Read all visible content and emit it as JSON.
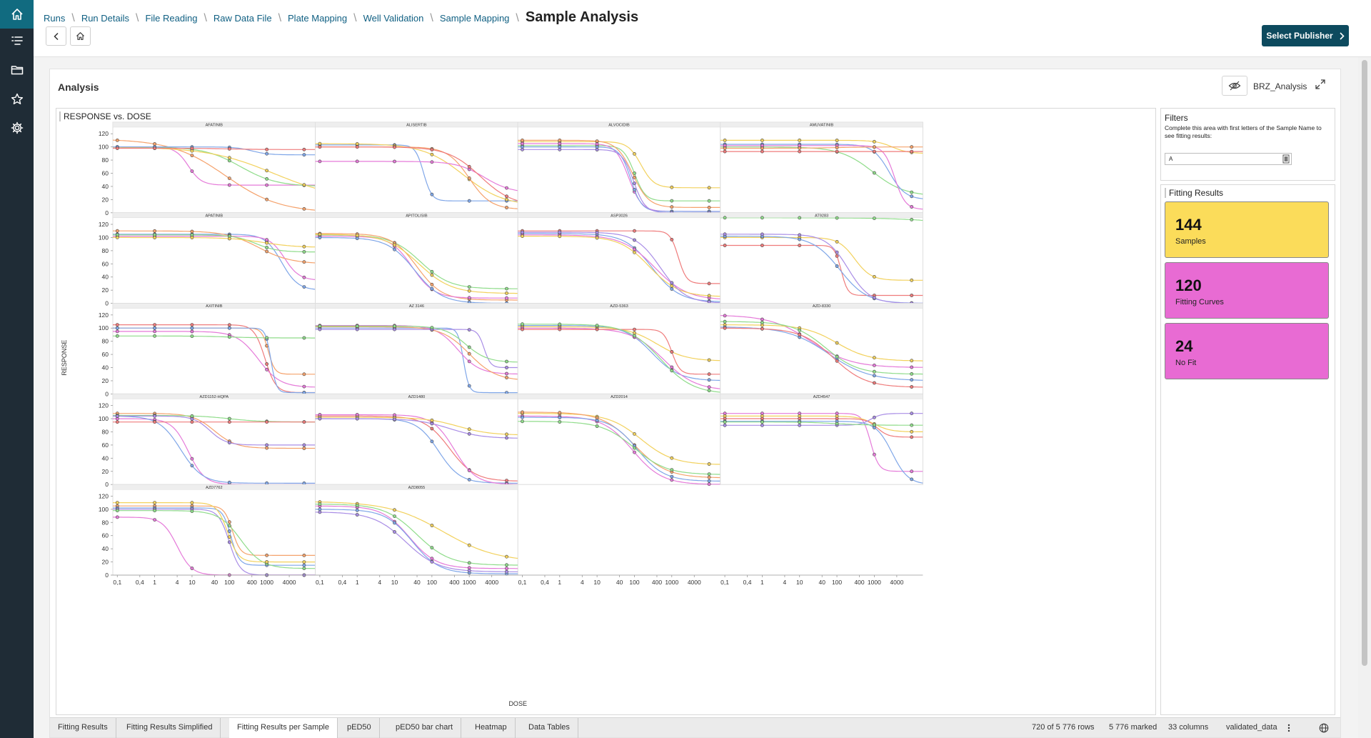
{
  "nav": {
    "items": [
      {
        "icon": "home-icon",
        "active": true
      },
      {
        "icon": "list-icon",
        "active": false
      },
      {
        "icon": "folder-icon",
        "active": false
      },
      {
        "icon": "star-icon",
        "active": false
      },
      {
        "icon": "gear-icon",
        "active": false
      }
    ]
  },
  "breadcrumb": {
    "items": [
      "Runs",
      "Run Details",
      "File Reading",
      "Raw Data File",
      "Plate Mapping",
      "Well Validation",
      "Sample Mapping"
    ],
    "current": "Sample Analysis"
  },
  "toolbar": {
    "back_icon": "chevron-left-icon",
    "home_icon": "home-icon",
    "publisher_label": "Select Publisher"
  },
  "analysis": {
    "title": "Analysis",
    "view_name": "BRZ_Analysis"
  },
  "chart": {
    "title": "RESPONSE vs. DOSE"
  },
  "filters": {
    "title": "Filters",
    "help": "Complete this area with first letters of the Sample Name to see fitting results:",
    "value": "A"
  },
  "fitting_results": {
    "title": "Fitting Results",
    "cards": [
      {
        "value": "144",
        "label": "Samples",
        "color": "#fbdc5a"
      },
      {
        "value": "120",
        "label": "Fitting Curves",
        "color": "#e86bd3"
      },
      {
        "value": "24",
        "label": "No Fit",
        "color": "#e86bd3"
      }
    ]
  },
  "tabs": [
    {
      "label": "Fitting Results",
      "active": false
    },
    {
      "label": "Fitting Results Simplified",
      "active": false
    },
    {
      "label": "Fitting Results per Sample",
      "active": true
    },
    {
      "label": "pED50",
      "active": false
    },
    {
      "label": "pED50 bar chart",
      "active": false
    },
    {
      "label": "Heatmap",
      "active": false
    },
    {
      "label": "Data Tables",
      "active": false
    }
  ],
  "status": {
    "rows": "720 of 5 776 rows",
    "marked": "5 776 marked",
    "columns": "33 columns",
    "table": "validated_data"
  },
  "colors": {
    "accent": "#0d4a5e",
    "nav_bg": "#1f2c36",
    "nav_active": "#116b80"
  },
  "chart_data": {
    "type": "line",
    "title": "RESPONSE vs. DOSE",
    "xlabel": "DOSE",
    "ylabel": "RESPONSE",
    "xscale": "log",
    "xticks": [
      "0,1",
      "0,4",
      "1",
      "4",
      "10",
      "40",
      "100",
      "400",
      "1000",
      "4000"
    ],
    "yticks": [
      0,
      20,
      40,
      60,
      80,
      100,
      120
    ],
    "ylim": [
      0,
      130
    ],
    "series_colors": [
      "#f5a26c",
      "#7fa6e8",
      "#f2d15c",
      "#8fdc8a",
      "#e57ad9",
      "#a98de6",
      "#ef7b7b",
      "#6fc4d7"
    ],
    "panels": [
      {
        "name": "AFATINIB",
        "curves": [
          {
            "top": 100,
            "bottom": 42,
            "ec50": 8,
            "hill": 2.5,
            "color": 4
          },
          {
            "top": 112,
            "bottom": 0,
            "ec50": 80,
            "hill": 0.6,
            "color": 0
          },
          {
            "top": 100,
            "bottom": 40,
            "ec50": 200,
            "hill": 0.9,
            "color": 3
          },
          {
            "top": 100,
            "bottom": 20,
            "ec50": 1500,
            "hill": 0.5,
            "color": 2
          },
          {
            "top": 100,
            "bottom": 88,
            "ec50": 400,
            "hill": 2,
            "color": 1
          },
          {
            "top": 98,
            "bottom": 96,
            "ec50": 100,
            "hill": 1,
            "color": 6
          }
        ]
      },
      {
        "name": "ALISERTIB",
        "curves": [
          {
            "top": 103,
            "bottom": 18,
            "ec50": 60,
            "hill": 4,
            "color": 1
          },
          {
            "top": 105,
            "bottom": 10,
            "ec50": 700,
            "hill": 0.8,
            "color": 2
          },
          {
            "top": 100,
            "bottom": 5,
            "ec50": 1000,
            "hill": 1.5,
            "color": 0
          },
          {
            "top": 78,
            "bottom": 30,
            "ec50": 2500,
            "hill": 1.2,
            "color": 4
          },
          {
            "top": 100,
            "bottom": 10,
            "ec50": 2000,
            "hill": 1,
            "color": 6
          }
        ]
      },
      {
        "name": "ALVOCIDIB",
        "curves": [
          {
            "top": 108,
            "bottom": 38,
            "ec50": 150,
            "hill": 2.5,
            "color": 2
          },
          {
            "top": 102,
            "bottom": 18,
            "ec50": 100,
            "hill": 3,
            "color": 3
          },
          {
            "top": 110,
            "bottom": 8,
            "ec50": 90,
            "hill": 2,
            "color": 0
          },
          {
            "top": 105,
            "bottom": 2,
            "ec50": 70,
            "hill": 2.5,
            "color": 4
          },
          {
            "top": 100,
            "bottom": 2,
            "ec50": 80,
            "hill": 3,
            "color": 1
          },
          {
            "top": 96,
            "bottom": 0,
            "ec50": 95,
            "hill": 2.8,
            "color": 5
          }
        ]
      },
      {
        "name": "AMUVATINIB",
        "curves": [
          {
            "top": 100,
            "bottom": 25,
            "ec50": 900,
            "hill": 1,
            "color": 3
          },
          {
            "top": 104,
            "bottom": 20,
            "ec50": 2500,
            "hill": 2,
            "color": 1
          },
          {
            "top": 102,
            "bottom": 5,
            "ec50": 3500,
            "hill": 3,
            "color": 4
          },
          {
            "top": 110,
            "bottom": 90,
            "ec50": 3000,
            "hill": 2,
            "color": 2
          },
          {
            "top": 98,
            "bottom": 100,
            "ec50": 100,
            "hill": 1,
            "color": 0
          },
          {
            "top": 93,
            "bottom": 93,
            "ec50": 100,
            "hill": 1,
            "color": 6
          }
        ]
      },
      {
        "name": "APATINIB",
        "curves": [
          {
            "top": 105,
            "bottom": 20,
            "ec50": 2500,
            "hill": 2,
            "color": 1
          },
          {
            "top": 102,
            "bottom": 35,
            "ec50": 3000,
            "hill": 2.2,
            "color": 4
          },
          {
            "top": 110,
            "bottom": 60,
            "ec50": 600,
            "hill": 1,
            "color": 0
          },
          {
            "top": 104,
            "bottom": 78,
            "ec50": 500,
            "hill": 1.5,
            "color": 3
          },
          {
            "top": 100,
            "bottom": 85,
            "ec50": 800,
            "hill": 1,
            "color": 2
          }
        ]
      },
      {
        "name": "APITOLISIB",
        "curves": [
          {
            "top": 104,
            "bottom": 22,
            "ec50": 50,
            "hill": 1.1,
            "color": 3
          },
          {
            "top": 106,
            "bottom": 5,
            "ec50": 40,
            "hill": 1.3,
            "color": 0
          },
          {
            "top": 102,
            "bottom": 8,
            "ec50": 30,
            "hill": 1.5,
            "color": 4
          },
          {
            "top": 100,
            "bottom": 0,
            "ec50": 35,
            "hill": 1.2,
            "color": 1
          },
          {
            "top": 105,
            "bottom": 15,
            "ec50": 45,
            "hill": 1,
            "color": 2
          }
        ]
      },
      {
        "name": "ASP3026",
        "curves": [
          {
            "top": 110,
            "bottom": 30,
            "ec50": 1500,
            "hill": 4,
            "color": 6
          },
          {
            "top": 106,
            "bottom": 2,
            "ec50": 300,
            "hill": 1.2,
            "color": 1
          },
          {
            "top": 104,
            "bottom": 5,
            "ec50": 350,
            "hill": 1,
            "color": 4
          },
          {
            "top": 102,
            "bottom": 10,
            "ec50": 250,
            "hill": 1.1,
            "color": 2
          },
          {
            "top": 108,
            "bottom": 0,
            "ec50": 500,
            "hill": 1.3,
            "color": 5
          }
        ]
      },
      {
        "name": "AT9283",
        "curves": [
          {
            "top": 130,
            "bottom": 0,
            "ec50": 20000000.0,
            "hill": 0.5,
            "color": 3
          },
          {
            "top": 88,
            "bottom": 12,
            "ec50": 130,
            "hill": 5,
            "color": 6
          },
          {
            "top": 100,
            "bottom": 35,
            "ec50": 300,
            "hill": 2,
            "color": 2
          },
          {
            "top": 102,
            "bottom": 0,
            "ec50": 120,
            "hill": 1.2,
            "color": 1
          },
          {
            "top": 105,
            "bottom": 0,
            "ec50": 200,
            "hill": 1.5,
            "color": 5
          }
        ]
      },
      {
        "name": "AXITINIB",
        "curves": [
          {
            "top": 105,
            "bottom": 2,
            "ec50": 900,
            "hill": 3,
            "color": 6
          },
          {
            "top": 100,
            "bottom": 30,
            "ec50": 1100,
            "hill": 5,
            "color": 0
          },
          {
            "top": 95,
            "bottom": 10,
            "ec50": 600,
            "hill": 1.5,
            "color": 4
          },
          {
            "top": 100,
            "bottom": 2,
            "ec50": 1300,
            "hill": 6,
            "color": 1
          },
          {
            "top": 88,
            "bottom": 85,
            "ec50": 100,
            "hill": 1,
            "color": 3
          }
        ]
      },
      {
        "name": "AZ 3146",
        "curves": [
          {
            "top": 100,
            "bottom": 2,
            "ec50": 700,
            "hill": 6,
            "color": 1
          },
          {
            "top": 104,
            "bottom": 30,
            "ec50": 500,
            "hill": 1.5,
            "color": 4
          },
          {
            "top": 102,
            "bottom": 20,
            "ec50": 1000,
            "hill": 1.2,
            "color": 0
          },
          {
            "top": 98,
            "bottom": 40,
            "ec50": 2500,
            "hill": 5,
            "color": 5
          },
          {
            "top": 103,
            "bottom": 48,
            "ec50": 800,
            "hill": 1.5,
            "color": 3
          }
        ]
      },
      {
        "name": "AZD-5363",
        "curves": [
          {
            "top": 104,
            "bottom": 20,
            "ec50": 300,
            "hill": 1.2,
            "color": 1
          },
          {
            "top": 102,
            "bottom": 50,
            "ec50": 400,
            "hill": 1.1,
            "color": 2
          },
          {
            "top": 100,
            "bottom": 5,
            "ec50": 600,
            "hill": 1,
            "color": 4
          },
          {
            "top": 98,
            "bottom": 30,
            "ec50": 1000,
            "hill": 4,
            "color": 6
          },
          {
            "top": 106,
            "bottom": 0,
            "ec50": 500,
            "hill": 1,
            "color": 3
          }
        ]
      },
      {
        "name": "AZD-8330",
        "curves": [
          {
            "top": 120,
            "bottom": 40,
            "ec50": 20,
            "hill": 0.8,
            "color": 4
          },
          {
            "top": 105,
            "bottom": 50,
            "ec50": 100,
            "hill": 1,
            "color": 2
          },
          {
            "top": 102,
            "bottom": 20,
            "ec50": 60,
            "hill": 0.8,
            "color": 1
          },
          {
            "top": 100,
            "bottom": 10,
            "ec50": 80,
            "hill": 1,
            "color": 6
          },
          {
            "top": 110,
            "bottom": 30,
            "ec50": 50,
            "hill": 1,
            "color": 3
          }
        ]
      },
      {
        "name": "AZD1152-HQPA",
        "curves": [
          {
            "top": 100,
            "bottom": 0,
            "ec50": 8,
            "hill": 2,
            "color": 4
          },
          {
            "top": 104,
            "bottom": 2,
            "ec50": 5,
            "hill": 1.5,
            "color": 1
          },
          {
            "top": 108,
            "bottom": 55,
            "ec50": 40,
            "hill": 1.5,
            "color": 0
          },
          {
            "top": 105,
            "bottom": 95,
            "ec50": 100,
            "hill": 1,
            "color": 3
          },
          {
            "top": 104,
            "bottom": 60,
            "ec50": 30,
            "hill": 2,
            "color": 5
          },
          {
            "top": 95,
            "bottom": 95,
            "ec50": 100,
            "hill": 1,
            "color": 6
          }
        ]
      },
      {
        "name": "AZD1480",
        "curves": [
          {
            "top": 104,
            "bottom": 5,
            "ec50": 300,
            "hill": 1.3,
            "color": 6
          },
          {
            "top": 100,
            "bottom": 2,
            "ec50": 150,
            "hill": 1.5,
            "color": 1
          },
          {
            "top": 106,
            "bottom": 0,
            "ec50": 400,
            "hill": 1.5,
            "color": 4
          },
          {
            "top": 102,
            "bottom": 75,
            "ec50": 500,
            "hill": 1,
            "color": 2
          },
          {
            "top": 100,
            "bottom": 70,
            "ec50": 300,
            "hill": 1,
            "color": 5
          }
        ]
      },
      {
        "name": "AZD2014",
        "curves": [
          {
            "top": 108,
            "bottom": 30,
            "ec50": 150,
            "hill": 1,
            "color": 2
          },
          {
            "top": 110,
            "bottom": 10,
            "ec50": 100,
            "hill": 1,
            "color": 0
          },
          {
            "top": 104,
            "bottom": 0,
            "ec50": 90,
            "hill": 1.1,
            "color": 4
          },
          {
            "top": 102,
            "bottom": 5,
            "ec50": 120,
            "hill": 1.2,
            "color": 1
          },
          {
            "top": 96,
            "bottom": 15,
            "ec50": 100,
            "hill": 1,
            "color": 3
          }
        ]
      },
      {
        "name": "AZD4547",
        "curves": [
          {
            "top": 108,
            "bottom": 20,
            "ec50": 800,
            "hill": 4,
            "color": 4
          },
          {
            "top": 104,
            "bottom": 80,
            "ec50": 1000,
            "hill": 2,
            "color": 2
          },
          {
            "top": 100,
            "bottom": 72,
            "ec50": 1200,
            "hill": 3,
            "color": 6
          },
          {
            "top": 90,
            "bottom": 108,
            "ec50": 800,
            "hill": 3,
            "color": 5
          },
          {
            "top": 96,
            "bottom": 0,
            "ec50": 3000,
            "hill": 2,
            "color": 1
          },
          {
            "top": 95,
            "bottom": 90,
            "ec50": 100,
            "hill": 1,
            "color": 3
          }
        ]
      },
      {
        "name": "AZD7762",
        "curves": [
          {
            "top": 88,
            "bottom": 0,
            "ec50": 4,
            "hill": 2.2,
            "color": 4
          },
          {
            "top": 105,
            "bottom": 30,
            "ec50": 120,
            "hill": 4,
            "color": 0
          },
          {
            "top": 102,
            "bottom": 15,
            "ec50": 110,
            "hill": 4,
            "color": 1
          },
          {
            "top": 100,
            "bottom": 0,
            "ec50": 100,
            "hill": 3,
            "color": 5
          },
          {
            "top": 98,
            "bottom": 10,
            "ec50": 200,
            "hill": 1.5,
            "color": 3
          },
          {
            "top": 110,
            "bottom": 20,
            "ec50": 90,
            "hill": 3,
            "color": 2
          }
        ]
      },
      {
        "name": "AZD8055",
        "curves": [
          {
            "top": 112,
            "bottom": 20,
            "ec50": 200,
            "hill": 0.6,
            "color": 2
          },
          {
            "top": 105,
            "bottom": 10,
            "ec50": 25,
            "hill": 1.2,
            "color": 4
          },
          {
            "top": 100,
            "bottom": 2,
            "ec50": 30,
            "hill": 1.2,
            "color": 1
          },
          {
            "top": 108,
            "bottom": 15,
            "ec50": 40,
            "hill": 1,
            "color": 3
          },
          {
            "top": 96,
            "bottom": 5,
            "ec50": 20,
            "hill": 1,
            "color": 5
          }
        ]
      }
    ]
  }
}
